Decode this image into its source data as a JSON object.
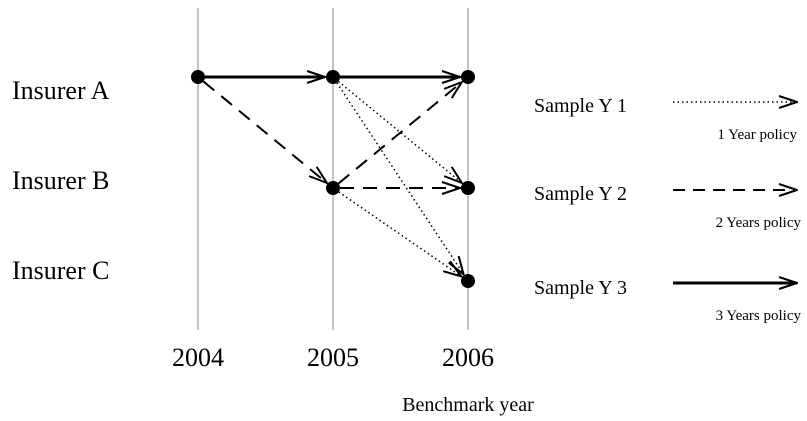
{
  "insurers": [
    "Insurer A",
    "Insurer B",
    "Insurer C"
  ],
  "years": [
    "2004",
    "2005",
    "2006"
  ],
  "axis_title": "Benchmark year",
  "legend": [
    {
      "sample": "Sample Y 1",
      "policy": "1 Year policy",
      "style": "dotted"
    },
    {
      "sample": "Sample Y 2",
      "policy": "2 Years policy",
      "style": "dashed"
    },
    {
      "sample": "Sample Y 3",
      "policy": "3 Years policy",
      "style": "solid"
    }
  ],
  "nodes": [
    {
      "id": "A2004",
      "insurer": "Insurer A",
      "year": "2004"
    },
    {
      "id": "A2005",
      "insurer": "Insurer A",
      "year": "2005"
    },
    {
      "id": "A2006",
      "insurer": "Insurer A",
      "year": "2006"
    },
    {
      "id": "B2005",
      "insurer": "Insurer B",
      "year": "2005"
    },
    {
      "id": "B2006",
      "insurer": "Insurer B",
      "year": "2006"
    },
    {
      "id": "C2006",
      "insurer": "Insurer C",
      "year": "2006"
    }
  ],
  "edges": [
    {
      "from": "A2004",
      "to": "A2005",
      "style": "solid"
    },
    {
      "from": "A2005",
      "to": "A2006",
      "style": "solid"
    },
    {
      "from": "A2004",
      "to": "B2005",
      "style": "dashed"
    },
    {
      "from": "B2005",
      "to": "A2006",
      "style": "dashed"
    },
    {
      "from": "B2005",
      "to": "B2006",
      "style": "dashed"
    },
    {
      "from": "A2005",
      "to": "B2006",
      "style": "dotted"
    },
    {
      "from": "A2005",
      "to": "C2006",
      "style": "dotted"
    },
    {
      "from": "B2005",
      "to": "C2006",
      "style": "dotted"
    }
  ]
}
